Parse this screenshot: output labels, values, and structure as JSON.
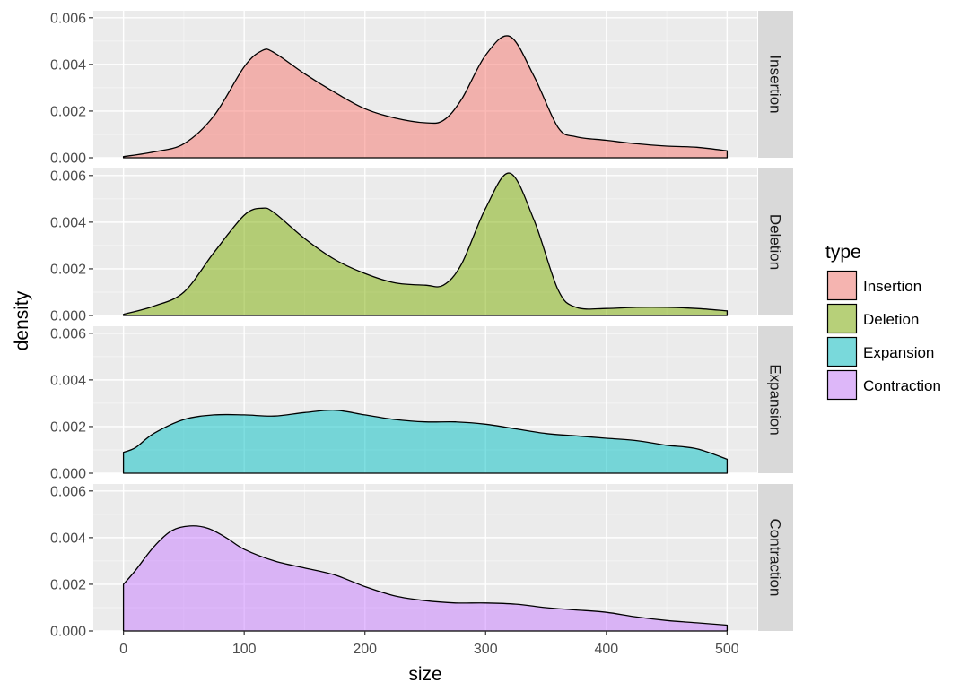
{
  "chart_data": {
    "type": "area",
    "subtype": "faceted density",
    "title": "",
    "xlabel": "size",
    "ylabel": "density",
    "xlim": [
      -25,
      525
    ],
    "ylim": [
      0,
      0.0063
    ],
    "x_ticks": [
      0,
      100,
      200,
      300,
      400,
      500
    ],
    "x_tick_labels": [
      "0",
      "100",
      "200",
      "300",
      "400",
      "500"
    ],
    "y_ticks": [
      0,
      0.002,
      0.004,
      0.006
    ],
    "y_tick_labels": [
      "0.000",
      "0.002",
      "0.004",
      "0.006"
    ],
    "grid": true,
    "legend": {
      "title": "type",
      "position": "right"
    },
    "series": [
      {
        "name": "Insertion",
        "color": "#F8766D",
        "x": [
          0,
          25,
          50,
          75,
          100,
          115,
          125,
          150,
          175,
          200,
          225,
          250,
          265,
          280,
          300,
          320,
          340,
          360,
          375,
          400,
          425,
          450,
          475,
          500
        ],
        "y": [
          5e-05,
          0.00025,
          0.0006,
          0.0018,
          0.0039,
          0.0046,
          0.0045,
          0.0036,
          0.0028,
          0.0021,
          0.0017,
          0.0015,
          0.0016,
          0.0025,
          0.0044,
          0.0052,
          0.0035,
          0.0013,
          0.0009,
          0.00075,
          0.0006,
          0.0005,
          0.00045,
          0.0003
        ]
      },
      {
        "name": "Deletion",
        "color": "#7CAE00",
        "x": [
          0,
          25,
          50,
          75,
          100,
          115,
          125,
          150,
          175,
          200,
          225,
          250,
          265,
          280,
          300,
          320,
          340,
          360,
          375,
          400,
          425,
          450,
          475,
          500
        ],
        "y": [
          5e-05,
          0.0004,
          0.001,
          0.0027,
          0.0043,
          0.0046,
          0.0044,
          0.0033,
          0.0024,
          0.0018,
          0.0014,
          0.0013,
          0.0013,
          0.0022,
          0.0046,
          0.0061,
          0.0041,
          0.0011,
          0.00035,
          0.0003,
          0.00035,
          0.00035,
          0.0003,
          0.0002
        ]
      },
      {
        "name": "Expansion",
        "color": "#00BFC4",
        "x": [
          0,
          10,
          25,
          50,
          75,
          100,
          125,
          150,
          175,
          200,
          225,
          250,
          275,
          300,
          325,
          350,
          375,
          400,
          425,
          450,
          475,
          500
        ],
        "y": [
          0.0009,
          0.0011,
          0.0017,
          0.0023,
          0.0025,
          0.0025,
          0.00245,
          0.0026,
          0.0027,
          0.0025,
          0.0023,
          0.0022,
          0.0022,
          0.0021,
          0.0019,
          0.0017,
          0.0016,
          0.0015,
          0.0014,
          0.0012,
          0.00105,
          0.0006
        ]
      },
      {
        "name": "Contraction",
        "color": "#C77CFF",
        "x": [
          0,
          10,
          25,
          40,
          55,
          70,
          85,
          100,
          125,
          150,
          175,
          200,
          225,
          250,
          275,
          300,
          325,
          350,
          375,
          400,
          425,
          450,
          475,
          500
        ],
        "y": [
          0.002,
          0.0026,
          0.0036,
          0.0043,
          0.0045,
          0.0044,
          0.004,
          0.0035,
          0.003,
          0.0027,
          0.0024,
          0.0019,
          0.0015,
          0.0013,
          0.0012,
          0.0012,
          0.00115,
          0.001,
          0.0009,
          0.0008,
          0.0006,
          0.00045,
          0.00035,
          0.00025
        ]
      }
    ]
  }
}
